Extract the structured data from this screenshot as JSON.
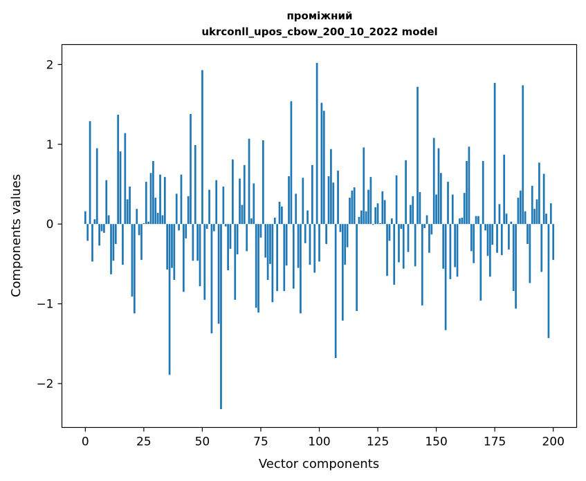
{
  "chart_data": {
    "type": "bar",
    "title_line1": "проміжний",
    "title_line2": "ukrconll_upos_cbow_200_10_2022 model",
    "xlabel": "Vector components",
    "ylabel": "Components values",
    "xlim": [
      -10,
      210
    ],
    "ylim": [
      -2.55,
      2.25
    ],
    "xticks": [
      0,
      25,
      50,
      75,
      100,
      125,
      150,
      175,
      200
    ],
    "yticks": [
      -2,
      -1,
      0,
      1,
      2
    ],
    "ytick_labels": [
      "−2",
      "−1",
      "0",
      "1",
      "2"
    ],
    "bar_color": "#1f77b4",
    "grid": false,
    "values": [
      0.16,
      -0.21,
      1.29,
      -0.47,
      0.06,
      0.95,
      -0.27,
      -0.09,
      -0.11,
      0.55,
      0.11,
      -0.63,
      -0.46,
      -0.25,
      1.37,
      0.91,
      -0.51,
      1.14,
      0.31,
      0.47,
      -0.91,
      -1.12,
      0.19,
      -0.14,
      -0.45,
      0.01,
      0.53,
      0.03,
      0.64,
      0.79,
      0.33,
      0.14,
      0.62,
      0.11,
      0.59,
      -0.57,
      -1.89,
      -0.55,
      -0.7,
      0.38,
      -0.08,
      0.62,
      -0.85,
      -0.18,
      0.35,
      1.38,
      -0.46,
      0.99,
      -0.46,
      -0.78,
      1.93,
      -0.95,
      -0.06,
      0.43,
      -1.37,
      -0.09,
      0.55,
      -1.25,
      -2.32,
      0.47,
      -0.03,
      -0.58,
      -0.31,
      0.81,
      -0.95,
      -0.38,
      0.57,
      0.24,
      0.74,
      -0.34,
      1.07,
      0.07,
      0.51,
      -1.05,
      -1.11,
      -0.17,
      1.05,
      -0.42,
      -0.7,
      -0.5,
      -0.98,
      0.08,
      -0.84,
      0.28,
      0.22,
      -0.84,
      -0.52,
      0.6,
      1.54,
      -0.81,
      0.38,
      -0.55,
      -1.12,
      0.58,
      -0.24,
      0.17,
      -0.51,
      0.74,
      -0.61,
      2.02,
      -0.47,
      1.52,
      1.42,
      -0.25,
      0.6,
      0.94,
      0.52,
      -1.68,
      0.67,
      -0.1,
      -1.21,
      -0.51,
      -0.29,
      0.33,
      0.42,
      0.46,
      -1.09,
      0.09,
      0.17,
      0.96,
      0.16,
      0.43,
      0.59,
      -0.01,
      0.21,
      0.26,
      0.01,
      0.41,
      0.3,
      -0.65,
      -0.21,
      0.07,
      -0.76,
      0.61,
      -0.48,
      -0.06,
      -0.56,
      0.8,
      -0.35,
      0.24,
      0.35,
      -0.53,
      1.72,
      0.4,
      -1.02,
      -0.05,
      0.11,
      -0.36,
      -0.13,
      1.08,
      0.37,
      0.95,
      0.64,
      -0.56,
      -1.33,
      0.53,
      -0.69,
      0.37,
      -0.54,
      -0.66,
      0.07,
      0.08,
      0.39,
      0.79,
      0.97,
      -0.34,
      -0.49,
      0.1,
      0.1,
      -0.96,
      0.79,
      -0.08,
      -0.4,
      -0.66,
      -0.26,
      1.77,
      -0.36,
      0.25,
      -0.39,
      0.87,
      0.13,
      -0.32,
      0.03,
      -0.84,
      -1.06,
      0.33,
      0.42,
      1.74,
      0.16,
      -0.25,
      -0.74,
      0.48,
      0.19,
      0.31,
      0.77,
      -0.6,
      0.63,
      0.13,
      -1.43,
      0.26,
      -0.45
    ]
  }
}
